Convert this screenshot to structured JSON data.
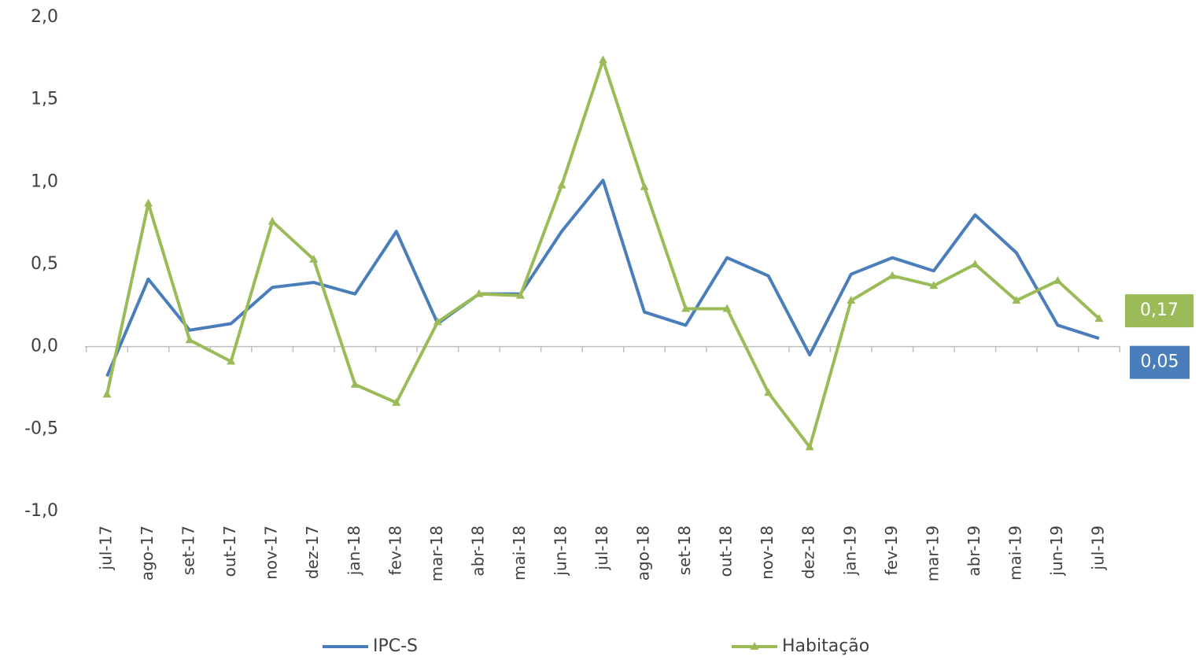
{
  "chart_data": {
    "type": "line",
    "categories": [
      "jul-17",
      "ago-17",
      "set-17",
      "out-17",
      "nov-17",
      "dez-17",
      "jan-18",
      "fev-18",
      "mar-18",
      "abr-18",
      "mai-18",
      "jun-18",
      "jul-18",
      "ago-18",
      "set-18",
      "out-18",
      "nov-18",
      "dez-18",
      "jan-19",
      "fev-19",
      "mar-19",
      "abr-19",
      "mai-19",
      "jun-19",
      "jul-19"
    ],
    "series": [
      {
        "name": "IPC-S",
        "color": "#4a7ebb",
        "values": [
          -0.18,
          0.41,
          0.1,
          0.14,
          0.36,
          0.39,
          0.32,
          0.7,
          0.14,
          0.32,
          0.32,
          0.7,
          1.01,
          0.21,
          0.13,
          0.54,
          0.43,
          -0.05,
          0.44,
          0.54,
          0.46,
          0.8,
          0.57,
          0.13,
          0.05
        ],
        "value_labels": [
          null,
          null,
          null,
          null,
          null,
          null,
          null,
          null,
          null,
          null,
          null,
          null,
          null,
          null,
          null,
          null,
          null,
          null,
          null,
          null,
          null,
          null,
          null,
          null,
          "0,05"
        ]
      },
      {
        "name": "Habitação",
        "color": "#9bbb59",
        "marker": "triangle",
        "values": [
          -0.29,
          0.87,
          0.04,
          -0.09,
          0.76,
          0.53,
          -0.23,
          -0.34,
          0.15,
          0.32,
          0.31,
          0.98,
          1.74,
          0.97,
          0.23,
          0.23,
          -0.28,
          -0.61,
          0.28,
          0.43,
          0.37,
          0.5,
          0.28,
          0.4,
          0.17
        ],
        "value_labels": [
          null,
          null,
          null,
          null,
          null,
          null,
          null,
          null,
          null,
          null,
          null,
          null,
          null,
          null,
          null,
          null,
          null,
          null,
          null,
          null,
          null,
          null,
          null,
          null,
          "0,17"
        ]
      }
    ],
    "ylim": [
      -1.0,
      2.0
    ],
    "yticks": [
      {
        "value": -1.0,
        "label": "-1,0"
      },
      {
        "value": -0.5,
        "label": "-0,5"
      },
      {
        "value": 0,
        "label": "0,0"
      },
      {
        "value": 0.5,
        "label": "0,5"
      },
      {
        "value": 1.0,
        "label": "1,0"
      },
      {
        "value": 1.5,
        "label": "1,5"
      },
      {
        "value": 2.0,
        "label": "2,0"
      }
    ],
    "grid": false
  }
}
